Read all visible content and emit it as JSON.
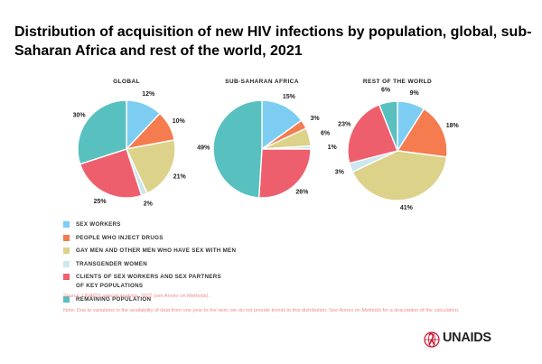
{
  "title": "Distribution of acquisition of new HIV infections by population, global, sub-Saharan Africa and rest of the world, 2021",
  "colors": {
    "sex_workers": "#7dcdf3",
    "pwid": "#f47c4e",
    "msm": "#dcd289",
    "transgender": "#cde7ee",
    "clients": "#ee5f6e",
    "remaining": "#58c1c0"
  },
  "chart_data": [
    {
      "type": "pie",
      "title": "GLOBAL",
      "categories": [
        "SEX WORKERS",
        "PEOPLE WHO INJECT DRUGS",
        "GAY MEN AND OTHER MEN WHO HAVE SEX WITH MEN",
        "TRANSGENDER WOMEN",
        "CLIENTS OF SEX WORKERS AND SEX PARTNERS OF KEY POPULATIONS",
        "REMAINING POPULATION"
      ],
      "values": [
        12,
        10,
        21,
        2,
        25,
        30
      ],
      "labels": [
        "12%",
        "10%",
        "21%",
        "2%",
        "25%",
        "30%"
      ]
    },
    {
      "type": "pie",
      "title": "SUB-SAHARAN AFRICA",
      "categories": [
        "SEX WORKERS",
        "PEOPLE WHO INJECT DRUGS",
        "GAY MEN AND OTHER MEN WHO HAVE SEX WITH MEN",
        "TRANSGENDER WOMEN",
        "CLIENTS OF SEX WORKERS AND SEX PARTNERS OF KEY POPULATIONS",
        "REMAINING POPULATION"
      ],
      "values": [
        15,
        3,
        6,
        1,
        26,
        49
      ],
      "labels": [
        "15%",
        "3%",
        "6%",
        "1%",
        "26%",
        "49%"
      ]
    },
    {
      "type": "pie",
      "title": "REST OF THE WORLD",
      "categories": [
        "SEX WORKERS",
        "PEOPLE WHO INJECT DRUGS",
        "GAY MEN AND OTHER MEN WHO HAVE SEX WITH MEN",
        "TRANSGENDER WOMEN",
        "CLIENTS OF SEX WORKERS AND SEX PARTNERS OF KEY POPULATIONS",
        "REMAINING POPULATION"
      ],
      "values": [
        9,
        18,
        41,
        3,
        23,
        6
      ],
      "labels": [
        "9%",
        "18%",
        "41%",
        "3%",
        "23%",
        "6%"
      ]
    }
  ],
  "legend": [
    {
      "label": "SEX WORKERS",
      "key": "sex_workers"
    },
    {
      "label": "PEOPLE WHO INJECT DRUGS",
      "key": "pwid"
    },
    {
      "label": "GAY MEN AND OTHER MEN WHO HAVE SEX WITH MEN",
      "key": "msm"
    },
    {
      "label": "TRANSGENDER WOMEN",
      "key": "transgender"
    },
    {
      "label": "CLIENTS OF SEX WORKERS AND SEX PARTNERS",
      "label2": "OF KEY POPULATIONS",
      "key": "clients"
    },
    {
      "label": "REMAINING POPULATION",
      "key": "remaining"
    }
  ],
  "source": "Source: UNAIDS special analysis, 2022 (see Annex on Methods).",
  "note": "Note: Due to variations in the availability of data from one year to the next, we do not provide trends in this distribution. See Annex on Methods for a description of the calculation.",
  "logo_text": "UNAIDS",
  "logo_icon": "unaids-ribbon-globe-icon"
}
